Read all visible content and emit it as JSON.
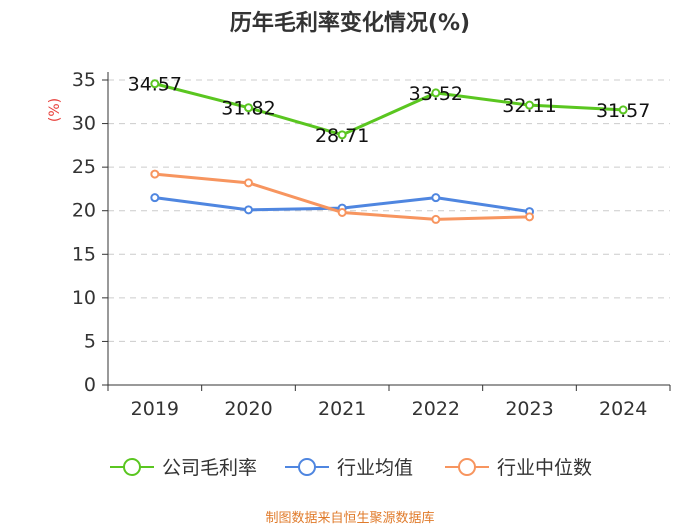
{
  "chart_data": {
    "type": "line",
    "title": "历年毛利率变化情况(%)",
    "ylabel": "(%)",
    "xlabel": "",
    "categories": [
      "2019",
      "2020",
      "2021",
      "2022",
      "2023",
      "2024"
    ],
    "ylim": [
      0,
      35
    ],
    "yticks": [
      0,
      5,
      10,
      15,
      20,
      25,
      30,
      35
    ],
    "grid": true,
    "legend_position": "bottom",
    "series": [
      {
        "name": "公司毛利率",
        "color": "#5ac620",
        "values": [
          34.57,
          31.82,
          28.71,
          33.52,
          32.11,
          31.57
        ],
        "labels": [
          "34.57",
          "31.82",
          "28.71",
          "33.52",
          "32.11",
          "31.57"
        ]
      },
      {
        "name": "行业均值",
        "color": "#4f86e0",
        "values": [
          21.5,
          20.1,
          20.3,
          21.5,
          19.9,
          null
        ]
      },
      {
        "name": "行业中位数",
        "color": "#f7955f",
        "values": [
          24.2,
          23.2,
          19.8,
          19.0,
          19.3,
          null
        ]
      }
    ],
    "source": "制图数据来自恒生聚源数据库"
  },
  "colors": {
    "ylabel": "#e8413c",
    "source": "#e07b2b",
    "axis": "#333333",
    "grid": "#cccccc"
  }
}
